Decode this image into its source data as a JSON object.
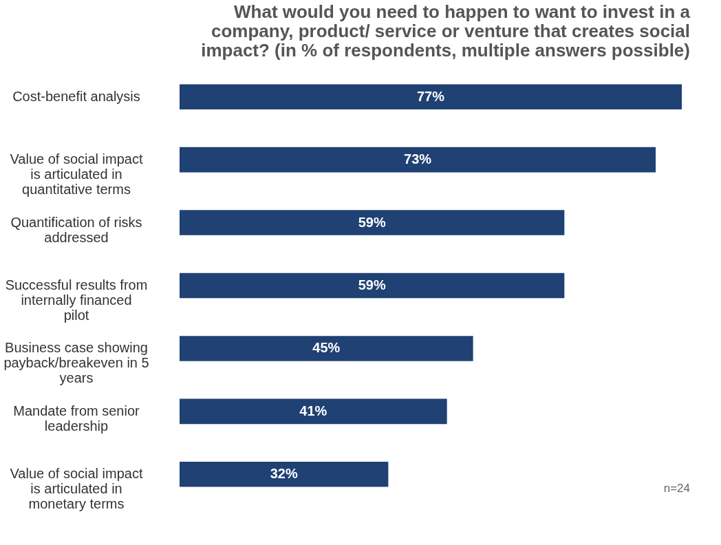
{
  "chart_data": {
    "type": "bar",
    "orientation": "horizontal",
    "title": "What would you need to happen to want to invest in a company, product/ service or venture that creates social impact? (in % of respondents, multiple answers possible)",
    "categories": [
      "Cost-benefit analysis",
      "Value of social impact is articulated in quantitative terms",
      "Quantification of risks addressed",
      "Successful results from internally financed pilot",
      "Business case showing payback/breakeven in 5 years",
      "Mandate from senior leadership",
      "Value of social impact is articulated in monetary terms"
    ],
    "values": [
      77,
      73,
      59,
      59,
      45,
      41,
      32
    ],
    "value_labels": [
      "77%",
      "73%",
      "59%",
      "59%",
      "45%",
      "41%",
      "32%"
    ],
    "color": "#1f4173",
    "annotations": [
      "n=24"
    ]
  }
}
